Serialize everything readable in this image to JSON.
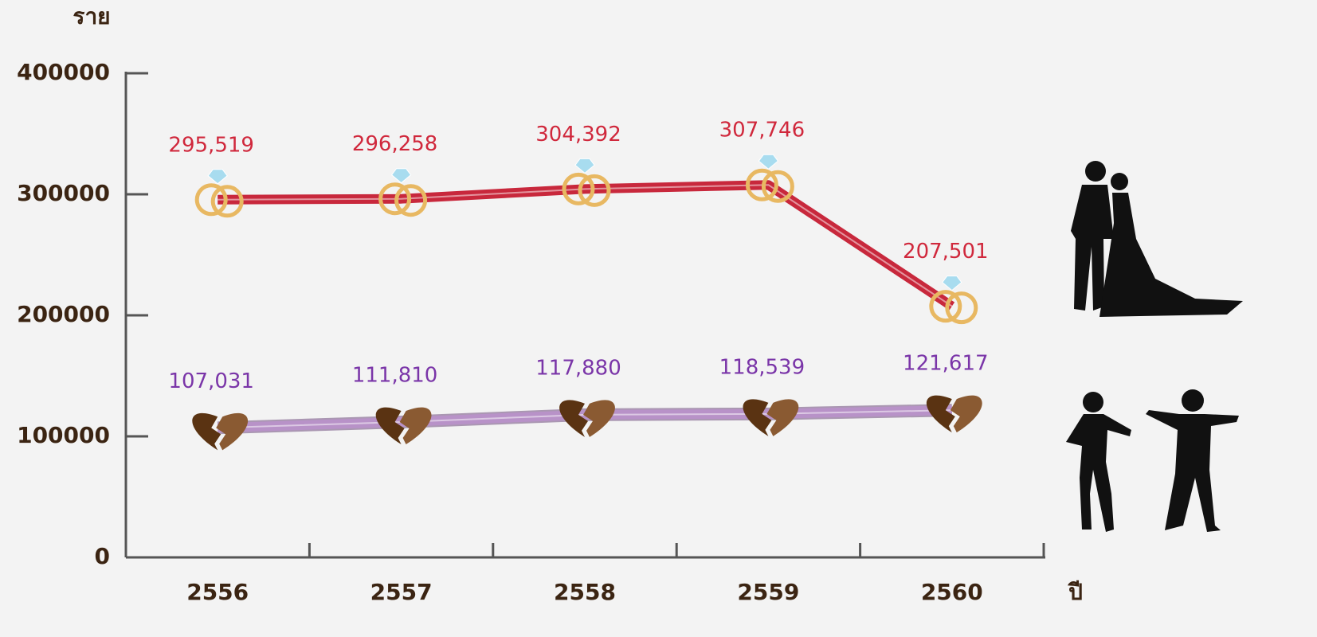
{
  "chart_data": {
    "type": "line",
    "y_label": "ราย",
    "x_label": "ปี",
    "categories": [
      "2556",
      "2557",
      "2558",
      "2559",
      "2560"
    ],
    "series": [
      {
        "color": "#c8283c",
        "label_color": "#d0283c",
        "marker": "rings",
        "values": [
          295519,
          296258,
          304392,
          307746,
          207501
        ],
        "value_labels": [
          "295,519",
          "296,258",
          "304,392",
          "307,746",
          "207,501"
        ]
      },
      {
        "color": "#b892c8",
        "label_color": "#7a35a8",
        "marker": "heart",
        "values": [
          107031,
          111810,
          117880,
          118539,
          121617
        ],
        "value_labels": [
          "107,031",
          "111,810",
          "117,880",
          "118,539",
          "121,617"
        ]
      }
    ],
    "ylim": [
      0,
      400000
    ],
    "yticks": [
      0,
      100000,
      200000,
      300000,
      400000
    ]
  }
}
